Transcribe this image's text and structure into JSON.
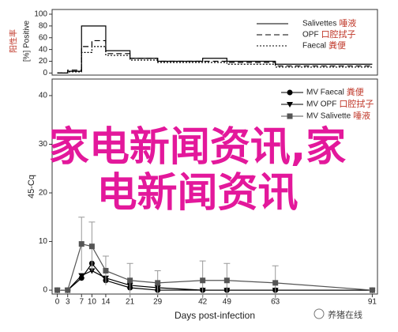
{
  "chart_data": [
    {
      "type": "line",
      "drawstyle": "steps-post",
      "ylabel": "[%] Positive",
      "ylabel_cn": "阳性率",
      "x": [
        0,
        3,
        7,
        10,
        14,
        21,
        29,
        42,
        49,
        63,
        91
      ],
      "xlim": [
        -1.5,
        92.5
      ],
      "ylim": [
        -3.5,
        108
      ],
      "yticks": [
        0,
        20,
        40,
        60,
        80,
        100
      ],
      "legend": "upper right",
      "series": [
        {
          "name": "Salivettes",
          "label_cn": "唾液",
          "color": "#000000",
          "linestyle": "solid",
          "values": [
            0,
            3,
            80,
            80,
            38,
            25,
            20,
            25,
            20,
            15,
            15
          ]
        },
        {
          "name": "OPF",
          "label_cn": "口腔拭子",
          "color": "#000000",
          "linestyle": "dashed",
          "values": [
            0,
            5,
            45,
            55,
            33,
            25,
            20,
            20,
            18,
            12,
            12
          ]
        },
        {
          "name": "Faecal",
          "label_cn": "粪便",
          "color": "#000000",
          "linestyle": "dotted",
          "values": [
            0,
            2,
            35,
            45,
            30,
            22,
            18,
            18,
            15,
            10,
            10
          ]
        }
      ]
    },
    {
      "type": "line",
      "ylabel": "45-Cq",
      "xlabel": "Days post-infection",
      "x": [
        0,
        3,
        7,
        10,
        14,
        21,
        29,
        42,
        49,
        63,
        91
      ],
      "xlim": [
        -1.5,
        92.5
      ],
      "ylim": [
        -0.8,
        43.4
      ],
      "xticks": [
        0,
        3,
        7,
        10,
        14,
        21,
        29,
        42,
        49,
        63,
        91
      ],
      "yticks": [
        0,
        10,
        20,
        30,
        40
      ],
      "legend": "upper right",
      "series": [
        {
          "name": "MV Faecal",
          "label_cn": "粪便",
          "color": "#000000",
          "marker": "circle",
          "values": [
            0,
            0,
            2.5,
            5.5,
            2,
            0.5,
            0,
            0,
            0,
            0,
            0
          ]
        },
        {
          "name": "MV OPF",
          "label_cn": "口腔拭子",
          "color": "#000000",
          "marker": "triangle",
          "values": [
            0,
            0,
            3,
            4,
            2.5,
            1,
            0.5,
            0,
            0,
            0,
            0
          ]
        },
        {
          "name": "MV Salivette",
          "label_cn": "唾液",
          "color": "#555555",
          "marker": "square",
          "values": [
            0,
            0,
            9.5,
            9,
            4,
            2,
            1.5,
            2,
            2,
            1.5,
            0
          ],
          "errors": [
            0,
            0,
            5.5,
            5,
            3,
            3.5,
            2.5,
            4,
            3.5,
            3.5,
            0
          ]
        }
      ]
    }
  ],
  "overlay_text": "家电新闻资讯,家电新闻资讯",
  "watermark": "养猪在线"
}
